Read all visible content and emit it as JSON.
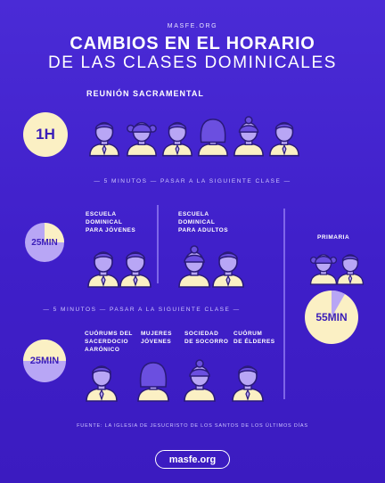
{
  "site": "MASFE.ORG",
  "title_line1": "CAMBIOS EN EL HORARIO",
  "title_line2": "DE LAS CLASES DOMINICALES",
  "sacrament": {
    "label": "REUNIÓN SACRAMENTAL",
    "time": "1H"
  },
  "separator1": "— 5 MINUTOS — PASAR A LA SIGUIENTE CLASE —",
  "sunday_school": {
    "time": "25MIN",
    "youth_label": [
      "ESCUELA",
      "DOMINICAL",
      "PARA JÓVENES"
    ],
    "adult_label": [
      "ESCUELA",
      "DOMINICAL",
      "PARA ADULTOS"
    ]
  },
  "primary": {
    "label": "PRIMARIA",
    "time": "55MIN"
  },
  "separator2": "— 5 MINUTOS — PASAR A LA SIGUIENTE CLASE —",
  "quorums": {
    "time": "25MIN",
    "aaronic": [
      "CUÓRUMS DEL",
      "SACERDOCIO",
      "AARÓNICO"
    ],
    "young_women": [
      "MUJERES",
      "JÓVENES"
    ],
    "relief_society": [
      "SOCIEDAD",
      "DE SOCORRO"
    ],
    "elders": [
      "CUÓRUM",
      "DE ÉLDERES"
    ]
  },
  "source": "FUENTE: LA IGLESIA DE JESUCRISTO DE LOS SANTOS DE LOS ÚLTIMOS DÍAS",
  "footer": "masfe.org",
  "colors": {
    "background": "#4a2bd6",
    "cream": "#fbf0c4",
    "lavender": "#b8a6f5",
    "line": "#2a1a7a"
  }
}
